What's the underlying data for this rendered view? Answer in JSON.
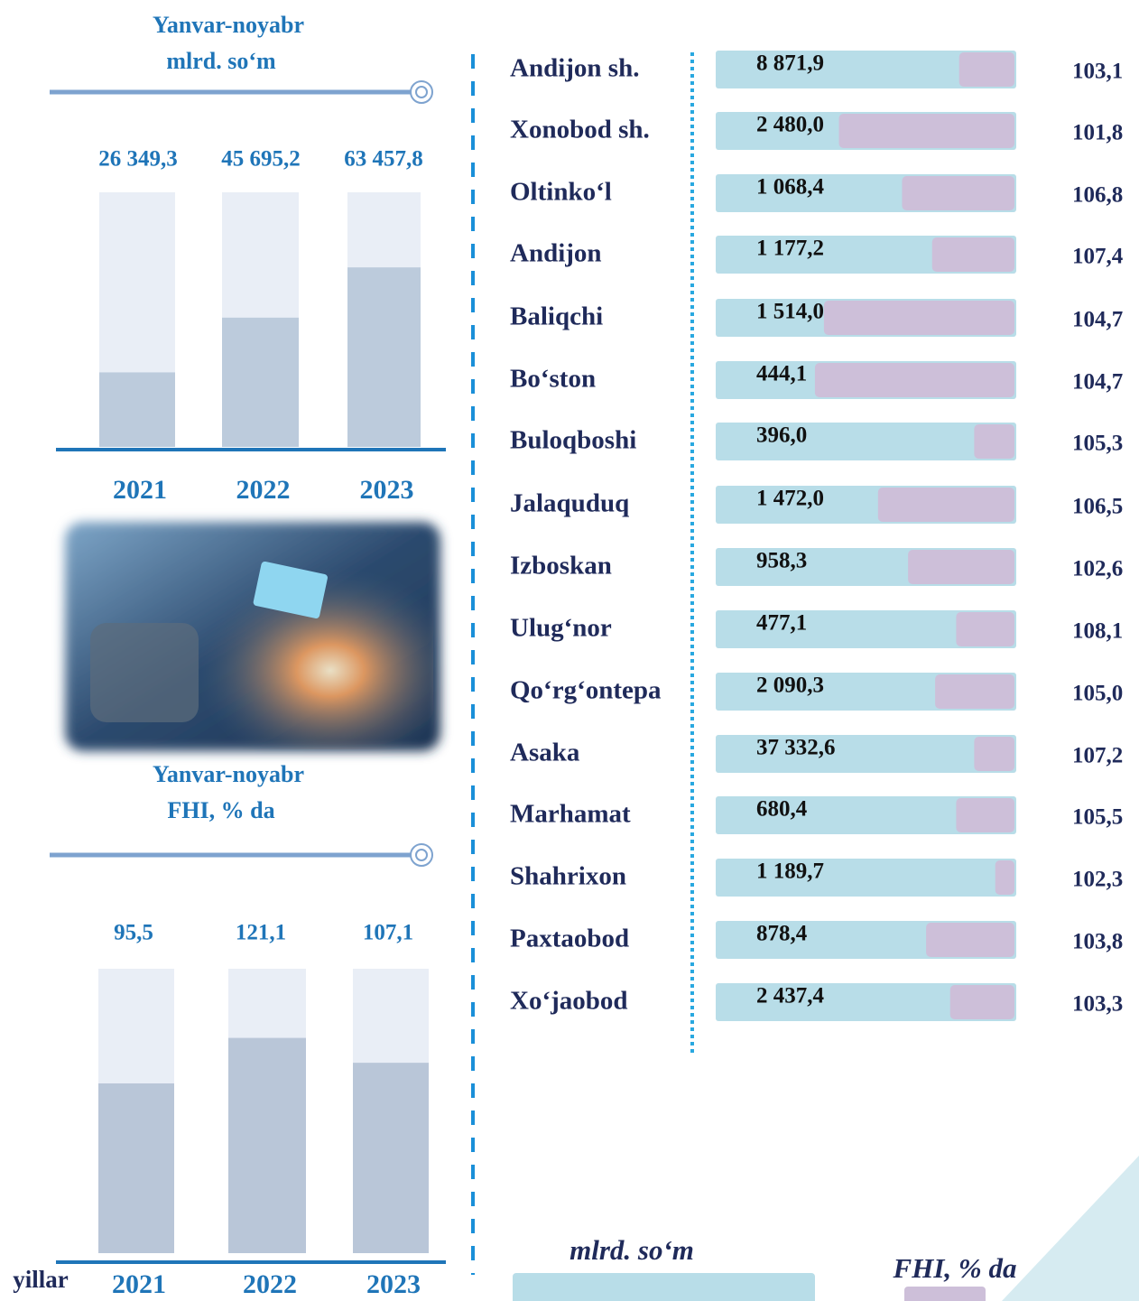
{
  "chart_data": [
    {
      "type": "bar",
      "title": "Yanvar-noyabr",
      "subtitle": "mlrd. so‘m",
      "categories": [
        "2021",
        "2022",
        "2023"
      ],
      "values": [
        26349.3,
        45695.2,
        63457.8
      ],
      "value_labels": [
        "26 349,3",
        "45 695,2",
        "63 457,8"
      ],
      "ylim": [
        0,
        90000
      ],
      "color": "#bccbdc"
    },
    {
      "type": "bar",
      "title": "Yanvar-noyabr",
      "subtitle": "FHI, % da",
      "x_label": "yillar",
      "categories": [
        "2021",
        "2022",
        "2023"
      ],
      "values": [
        95.5,
        121.1,
        107.1
      ],
      "value_labels": [
        "95,5",
        "121,1",
        "107,1"
      ],
      "ylim": [
        0,
        160
      ],
      "color": "#b9c6d8"
    }
  ],
  "regions": {
    "rows": [
      {
        "name": "Andijon sh.",
        "volume": "8 871,9",
        "fhi": "103,1"
      },
      {
        "name": "Xonobod sh.",
        "volume": "2 480,0",
        "fhi": "101,8"
      },
      {
        "name": "Oltinko‘l",
        "volume": "1 068,4",
        "fhi": "106,8"
      },
      {
        "name": "Andijon",
        "volume": "1 177,2",
        "fhi": "107,4"
      },
      {
        "name": "Baliqchi",
        "volume": "1 514,0",
        "fhi": "104,7"
      },
      {
        "name": "Bo‘ston",
        "volume": "444,1",
        "fhi": "104,7"
      },
      {
        "name": "Buloqboshi",
        "volume": "396,0",
        "fhi": "105,3"
      },
      {
        "name": "Jalaquduq",
        "volume": "1 472,0",
        "fhi": "106,5"
      },
      {
        "name": "Izboskan",
        "volume": "958,3",
        "fhi": "102,6"
      },
      {
        "name": "Ulug‘nor",
        "volume": "477,1",
        "fhi": "108,1"
      },
      {
        "name": "Qo‘rg‘ontepa",
        "volume": "2 090,3",
        "fhi": "105,0"
      },
      {
        "name": "Asaka",
        "volume": "37 332,6",
        "fhi": "107,2"
      },
      {
        "name": "Marhamat",
        "volume": "680,4",
        "fhi": "105,5"
      },
      {
        "name": "Shahrixon",
        "volume": "1 189,7",
        "fhi": "102,3"
      },
      {
        "name": "Paxtaobod",
        "volume": "878,4",
        "fhi": "103,8"
      },
      {
        "name": "Xo‘jaobod",
        "volume": "2 437,4",
        "fhi": "103,3"
      }
    ]
  },
  "legend": {
    "volume": "mlrd. so‘m",
    "fhi": "FHI, % da"
  }
}
